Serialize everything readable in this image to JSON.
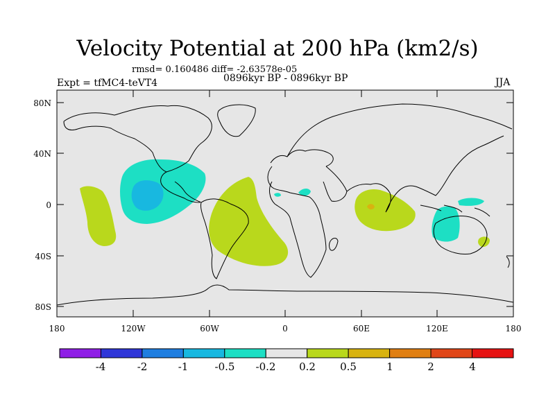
{
  "title": "Velocity Potential at 200 hPa (km2/s)",
  "stats_line": "rmsd= 0.160486 diff= -2.63578e-05",
  "left_label": "Expt = tfMC4-teVT4",
  "center_label": "0896kyr BP - 0896kyr BP",
  "right_label": "JJA",
  "map": {
    "lat_ticks": [
      "80N",
      "40N",
      "0",
      "40S",
      "80S"
    ],
    "lon_ticks": [
      "180",
      "120W",
      "60W",
      "0",
      "60E",
      "120E",
      "180"
    ],
    "background_color": "#e6e6e6",
    "land_outline": "coastlines"
  },
  "colorbar": {
    "labels": [
      "-4",
      "-2",
      "-1",
      "-0.5",
      "-0.2",
      "0.2",
      "0.5",
      "1",
      "2",
      "4"
    ],
    "colors": [
      "#8f1ee6",
      "#2f36d8",
      "#1f7ee0",
      "#18b8e0",
      "#1ddfc4",
      "#e6e6e6",
      "#b9d81c",
      "#d8b310",
      "#e07f12",
      "#e04618",
      "#e61313"
    ]
  }
}
